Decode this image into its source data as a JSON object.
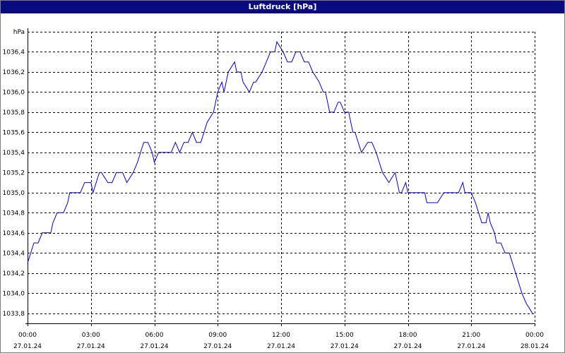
{
  "chart_data": {
    "type": "line",
    "title": "Luftdruck [hPa]",
    "ylabel": "hPa",
    "ylim": [
      1033.7,
      1036.6
    ],
    "yticks": [
      {
        "value": 1033.8,
        "label": "1033,8"
      },
      {
        "value": 1034.0,
        "label": "1034,0"
      },
      {
        "value": 1034.2,
        "label": "1034,2"
      },
      {
        "value": 1034.4,
        "label": "1034,4"
      },
      {
        "value": 1034.6,
        "label": "1034,6"
      },
      {
        "value": 1034.8,
        "label": "1034,8"
      },
      {
        "value": 1035.0,
        "label": "1035,0"
      },
      {
        "value": 1035.2,
        "label": "1035,2"
      },
      {
        "value": 1035.4,
        "label": "1035,4"
      },
      {
        "value": 1035.6,
        "label": "1035,6"
      },
      {
        "value": 1035.8,
        "label": "1035,8"
      },
      {
        "value": 1036.0,
        "label": "1036,0"
      },
      {
        "value": 1036.2,
        "label": "1036,2"
      },
      {
        "value": 1036.4,
        "label": "1036,4"
      },
      {
        "value": 1036.6,
        "label": "hPa"
      }
    ],
    "xlim": [
      0,
      24
    ],
    "xticks": [
      {
        "value": 0,
        "time": "00:00",
        "date": "27.01.24"
      },
      {
        "value": 3,
        "time": "03:00",
        "date": "27.01.24"
      },
      {
        "value": 6,
        "time": "06:00",
        "date": "27.01.24"
      },
      {
        "value": 9,
        "time": "09:00",
        "date": "27.01.24"
      },
      {
        "value": 12,
        "time": "12:00",
        "date": "27.01.24"
      },
      {
        "value": 15,
        "time": "15:00",
        "date": "27.01.24"
      },
      {
        "value": 18,
        "time": "18:00",
        "date": "27.01.24"
      },
      {
        "value": 21,
        "time": "21:00",
        "date": "27.01.24"
      },
      {
        "value": 24,
        "time": "00:00",
        "date": "28.01.24"
      }
    ],
    "grid": true,
    "series": [
      {
        "color": "#0000cc",
        "x": [
          0,
          0.3,
          0.4,
          0.5,
          0.7,
          0.8,
          1.1,
          1.2,
          1.4,
          1.7,
          1.9,
          2.0,
          2.5,
          2.7,
          3.0,
          3.1,
          3.4,
          3.5,
          3.8,
          4.0,
          4.2,
          4.5,
          4.7,
          5.0,
          5.2,
          5.5,
          5.7,
          5.9,
          6.0,
          6.2,
          6.4,
          6.6,
          6.8,
          7.0,
          7.2,
          7.4,
          7.6,
          7.8,
          8.0,
          8.2,
          8.5,
          8.8,
          9.0,
          9.2,
          9.3,
          9.5,
          9.8,
          9.9,
          10.1,
          10.2,
          10.5,
          10.7,
          10.8,
          11.1,
          11.3,
          11.5,
          11.7,
          11.8,
          12.1,
          12.3,
          12.5,
          12.7,
          12.9,
          13.1,
          13.3,
          13.5,
          13.8,
          14.0,
          14.1,
          14.3,
          14.5,
          14.7,
          14.8,
          15.0,
          15.2,
          15.4,
          15.5,
          15.8,
          16.1,
          16.3,
          16.5,
          16.8,
          17.1,
          17.4,
          17.6,
          17.7,
          17.9,
          18.0,
          18.1,
          18.3,
          18.4,
          18.8,
          18.9,
          19.4,
          19.7,
          20.2,
          20.4,
          20.6,
          20.7,
          20.9,
          21.0,
          21.2,
          21.5,
          21.7,
          21.8,
          21.9,
          22.1,
          22.2,
          22.4,
          22.6,
          22.8,
          23.1,
          23.4,
          23.6,
          23.9
        ],
        "values": [
          1034.3,
          1034.5,
          1034.5,
          1034.5,
          1034.6,
          1034.6,
          1034.6,
          1034.7,
          1034.8,
          1034.8,
          1034.9,
          1035.0,
          1035.0,
          1035.1,
          1035.1,
          1035.0,
          1035.2,
          1035.2,
          1035.1,
          1035.1,
          1035.2,
          1035.2,
          1035.1,
          1035.2,
          1035.3,
          1035.5,
          1035.5,
          1035.4,
          1035.3,
          1035.4,
          1035.4,
          1035.4,
          1035.4,
          1035.5,
          1035.4,
          1035.5,
          1035.5,
          1035.6,
          1035.5,
          1035.5,
          1035.7,
          1035.8,
          1036.0,
          1036.1,
          1036.0,
          1036.2,
          1036.3,
          1036.2,
          1036.2,
          1036.1,
          1036.0,
          1036.1,
          1036.1,
          1036.2,
          1036.3,
          1036.4,
          1036.4,
          1036.5,
          1036.4,
          1036.3,
          1036.3,
          1036.4,
          1036.4,
          1036.3,
          1036.3,
          1036.2,
          1036.1,
          1036.0,
          1036.0,
          1035.8,
          1035.8,
          1035.9,
          1035.9,
          1035.8,
          1035.8,
          1035.6,
          1035.6,
          1035.4,
          1035.5,
          1035.5,
          1035.4,
          1035.2,
          1035.1,
          1035.2,
          1035.0,
          1035.0,
          1035.1,
          1035.0,
          1035.0,
          1035.0,
          1035.0,
          1035.0,
          1034.9,
          1034.9,
          1035.0,
          1035.0,
          1035.0,
          1035.1,
          1035.0,
          1035.0,
          1035.0,
          1034.9,
          1034.7,
          1034.7,
          1034.8,
          1034.7,
          1034.6,
          1034.5,
          1034.5,
          1034.4,
          1034.4,
          1034.2,
          1034.0,
          1033.9,
          1033.8
        ]
      }
    ]
  }
}
